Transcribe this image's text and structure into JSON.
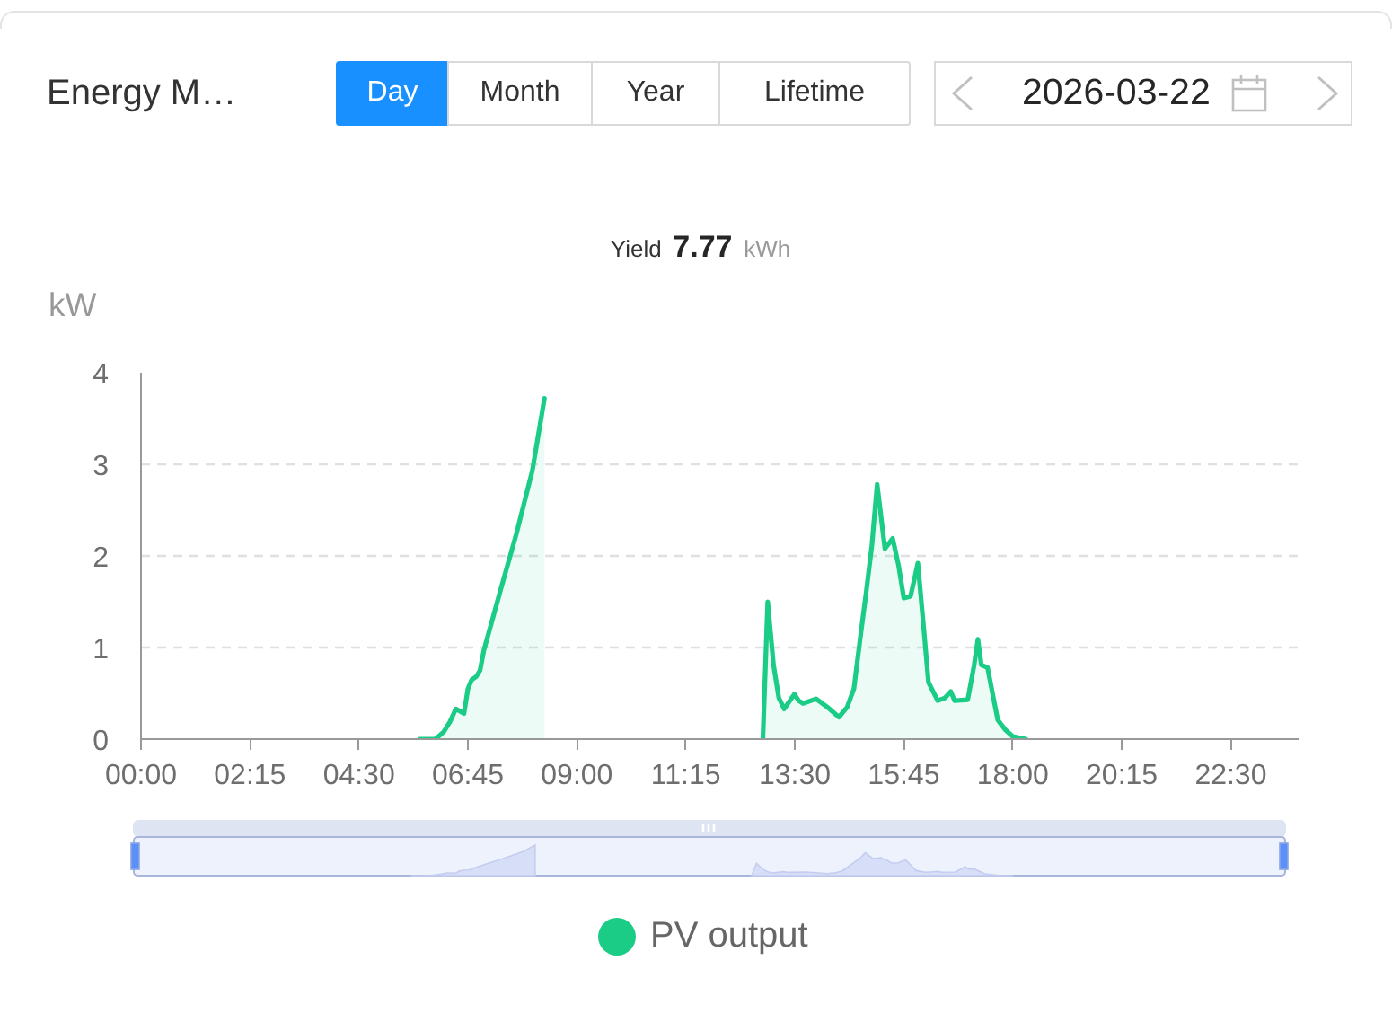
{
  "chart_data": {
    "type": "area",
    "title": "Energy M…",
    "subtitle": "Yield 7.77 kWh",
    "ylabel": "kW",
    "annotations": [
      "Day",
      "Month",
      "Year",
      "Lifetime",
      "2026-03-22"
    ],
    "xlim": [
      0,
      23.92
    ],
    "xticks": [
      {
        "value": 0,
        "label": "00:00"
      },
      {
        "value": 2.25,
        "label": "02:15"
      },
      {
        "value": 4.5,
        "label": "04:30"
      },
      {
        "value": 6.75,
        "label": "06:45"
      },
      {
        "value": 9,
        "label": "09:00"
      },
      {
        "value": 11.25,
        "label": "11:15"
      },
      {
        "value": 13.5,
        "label": "13:30"
      },
      {
        "value": 15.75,
        "label": "15:45"
      },
      {
        "value": 18,
        "label": "18:00"
      },
      {
        "value": 20.25,
        "label": "20:15"
      },
      {
        "value": 22.5,
        "label": "22:30"
      }
    ],
    "ylim": [
      0,
      4
    ],
    "yticks": [
      0,
      1,
      2,
      3,
      4
    ],
    "grid": "y",
    "legend": "bottom",
    "x": [
      5.75,
      6.08,
      6.25,
      6.38,
      6.5,
      6.67,
      6.75,
      6.83,
      6.92,
      7.0,
      7.08,
      7.42,
      7.75,
      8.08,
      8.33,
      8.42,
      12.84,
      12.94,
      13.06,
      13.17,
      13.28,
      13.49,
      13.58,
      13.67,
      13.94,
      14.17,
      14.41,
      14.58,
      14.72,
      14.85,
      14.97,
      15.09,
      15.2,
      15.36,
      15.52,
      15.64,
      15.75,
      15.89,
      16.04,
      16.15,
      16.26,
      16.45,
      16.6,
      16.72,
      16.8,
      17.07,
      17.2,
      17.28,
      17.35,
      17.48,
      17.6,
      17.69,
      17.85,
      18.0,
      18.27
    ],
    "series": [
      {
        "name": "PV output",
        "color": "#1acc86",
        "values": [
          0,
          0,
          0.08,
          0.19,
          0.33,
          0.28,
          0.55,
          0.65,
          0.68,
          0.75,
          0.97,
          1.62,
          2.24,
          2.93,
          3.72,
          null,
          0,
          1.5,
          0.81,
          0.45,
          0.33,
          0.49,
          0.42,
          0.39,
          0.44,
          0.35,
          0.24,
          0.35,
          0.55,
          1.1,
          1.59,
          2.11,
          2.78,
          2.08,
          2.19,
          1.9,
          1.54,
          1.56,
          1.92,
          1.28,
          0.62,
          0.42,
          0.45,
          0.52,
          0.42,
          0.43,
          0.8,
          1.09,
          0.81,
          0.78,
          0.45,
          0.21,
          0.1,
          0.03,
          0
        ]
      }
    ]
  }
}
